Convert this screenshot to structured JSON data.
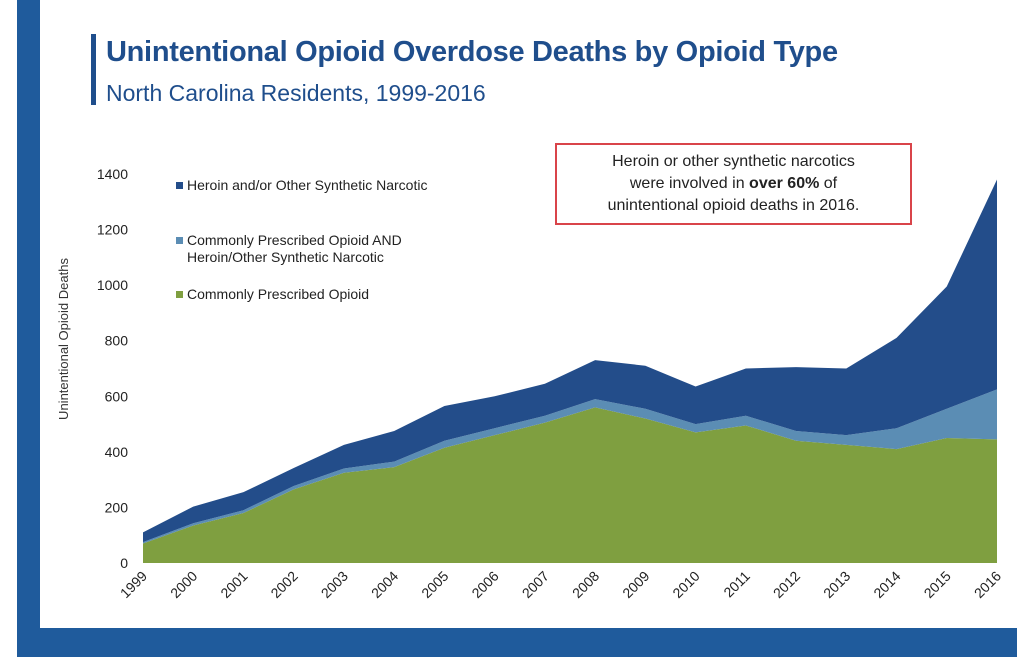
{
  "title": "Unintentional Opioid Overdose Deaths by Opioid Type",
  "subtitle": "North Carolina Residents, 1999-2016",
  "callout": {
    "line1": "Heroin or other synthetic narcotics",
    "line2_pre": "were involved in ",
    "line2_bold": "over 60%",
    "line2_post": " of",
    "line3": "unintentional opioid deaths in 2016."
  },
  "colors": {
    "heroin": "#234d8a",
    "both": "#5b8db4",
    "prescribed": "#7f9f40",
    "frame": "#1f5b9c"
  },
  "chart_data": {
    "type": "area",
    "stacked": true,
    "ylabel": "Unintentional Opioid Deaths",
    "xlabel": "",
    "ylim": [
      0,
      1400
    ],
    "yticks": [
      0,
      200,
      400,
      600,
      800,
      1000,
      1200,
      1400
    ],
    "x": [
      "1999",
      "2000",
      "2001",
      "2002",
      "2003",
      "2004",
      "2005",
      "2006",
      "2007",
      "2008",
      "2009",
      "2010",
      "2011",
      "2012",
      "2013",
      "2014",
      "2015",
      "2016"
    ],
    "legend_position": "top-left",
    "series": [
      {
        "name": "Commonly Prescribed Opioid",
        "values": [
          70,
          135,
          180,
          265,
          325,
          345,
          415,
          460,
          505,
          560,
          520,
          470,
          495,
          440,
          425,
          410,
          450,
          445
        ]
      },
      {
        "name": "Commonly Prescribed Opioid AND Heroin/Other Synthetic Narcotic",
        "values": [
          5,
          8,
          10,
          12,
          15,
          20,
          25,
          25,
          25,
          30,
          35,
          30,
          35,
          35,
          35,
          75,
          105,
          180
        ]
      },
      {
        "name": "Heroin and/or Other Synthetic Narcotic",
        "values": [
          35,
          60,
          65,
          65,
          85,
          110,
          125,
          115,
          115,
          140,
          155,
          135,
          170,
          230,
          240,
          325,
          440,
          755
        ]
      }
    ]
  }
}
